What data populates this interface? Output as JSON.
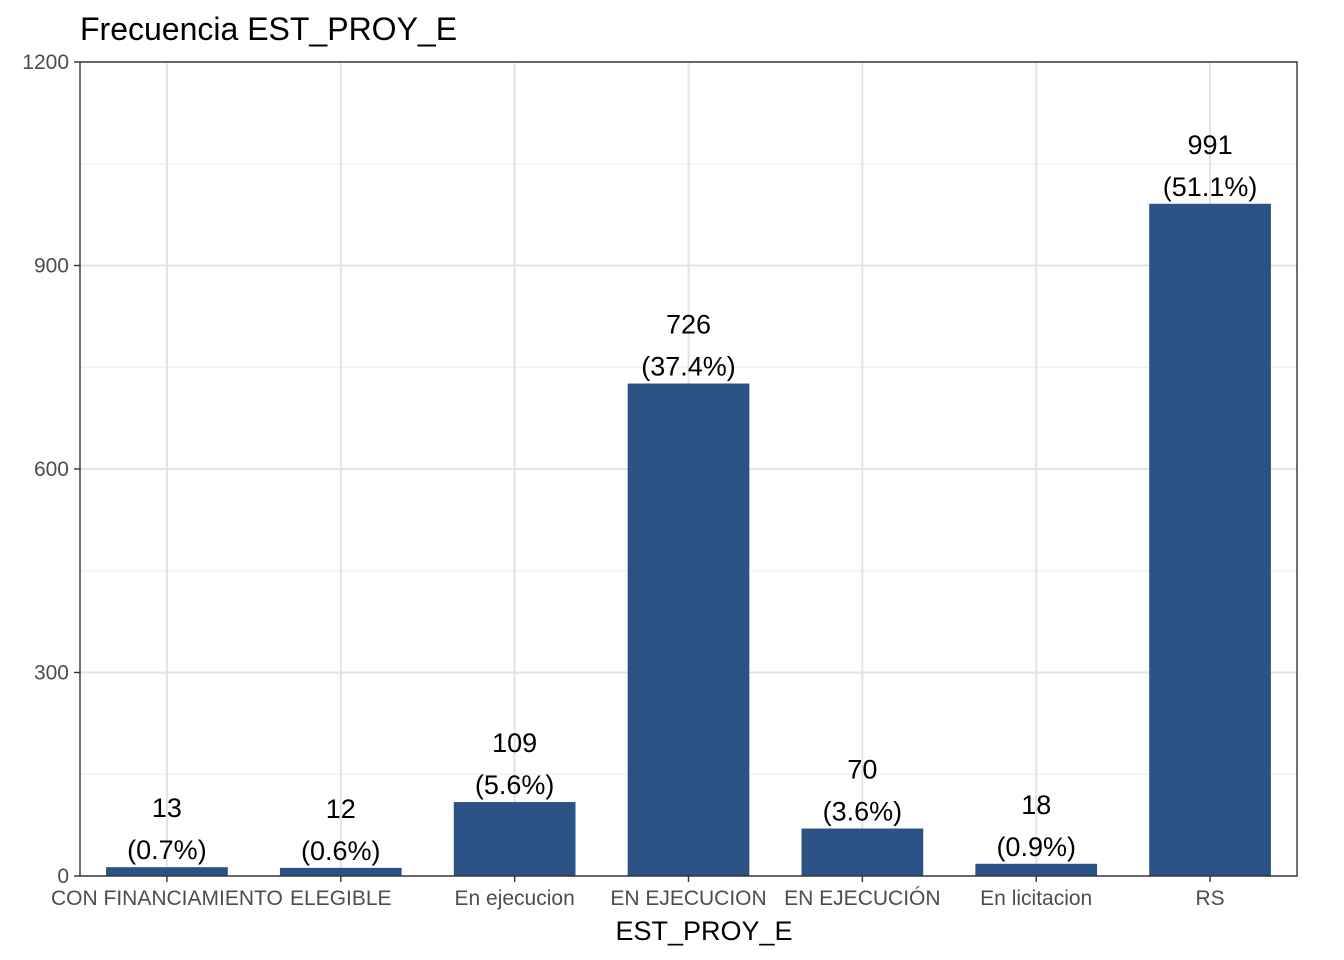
{
  "chart_data": {
    "type": "bar",
    "title": "Frecuencia EST_PROY_E",
    "xlabel": "EST_PROY_E",
    "ylabel": "",
    "categories": [
      "CON FINANCIAMIENTO",
      "ELEGIBLE",
      "En ejecucion",
      "EN EJECUCION",
      "EN EJECUCIÓN",
      "En licitacion",
      "RS"
    ],
    "values": [
      13,
      12,
      109,
      726,
      70,
      18,
      991
    ],
    "count_labels": [
      "13",
      "12",
      "109",
      "726",
      "70",
      "18",
      "991"
    ],
    "percent_labels": [
      "(0.7%)",
      "(0.6%)",
      "(5.6%)",
      "(37.4%)",
      "(3.6%)",
      "(0.9%)",
      "(51.1%)"
    ],
    "ylim": [
      0,
      1200
    ],
    "yticks": [
      0,
      300,
      600,
      900,
      1200
    ],
    "ytick_labels": [
      "0",
      "300",
      "600",
      "900",
      "1200"
    ],
    "grid": true,
    "legend": "none",
    "bar_color": "#2a5285"
  }
}
